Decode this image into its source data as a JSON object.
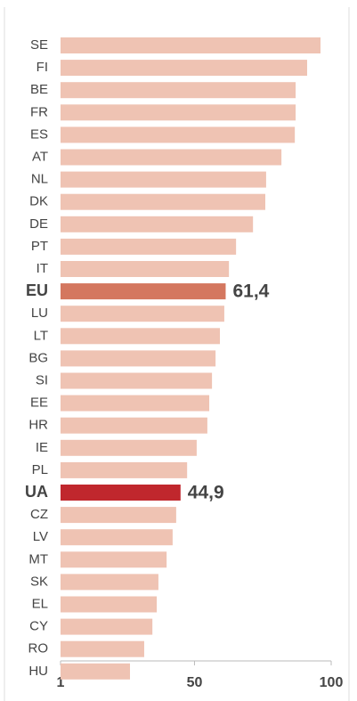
{
  "chart_data": {
    "type": "hbar",
    "categories": [
      "SE",
      "FI",
      "BE",
      "FR",
      "ES",
      "AT",
      "NL",
      "DK",
      "DE",
      "PT",
      "IT",
      "EU",
      "LU",
      "LT",
      "BG",
      "SI",
      "EE",
      "HR",
      "IE",
      "PL",
      "UA",
      "CZ",
      "LV",
      "MT",
      "SK",
      "EL",
      "CY",
      "RO",
      "HU"
    ],
    "values": [
      96.1,
      91.2,
      87,
      87,
      86.7,
      81.8,
      76.2,
      75.9,
      71.4,
      65.2,
      62.6,
      61.4,
      60.9,
      59.3,
      57.7,
      56.4,
      55.4,
      54.7,
      50.8,
      47.3,
      44.9,
      43.3,
      42,
      39.8,
      36.8,
      36.2,
      34.6,
      31.6,
      26.4
    ],
    "value_labels": [
      null,
      null,
      null,
      null,
      null,
      null,
      null,
      null,
      null,
      null,
      null,
      "61,4",
      null,
      null,
      null,
      null,
      null,
      null,
      null,
      null,
      "44,9",
      null,
      null,
      null,
      null,
      null,
      null,
      null,
      null
    ],
    "colors": [
      "#efc3b3",
      "#efc3b3",
      "#efc3b3",
      "#efc3b3",
      "#efc3b3",
      "#efc3b3",
      "#efc3b3",
      "#efc3b3",
      "#efc3b3",
      "#efc3b3",
      "#efc3b3",
      "#d4775f",
      "#efc3b3",
      "#efc3b3",
      "#efc3b3",
      "#efc3b3",
      "#efc3b3",
      "#efc3b3",
      "#efc3b3",
      "#efc3b3",
      "#c0272d",
      "#efc3b3",
      "#efc3b3",
      "#efc3b3",
      "#efc3b3",
      "#efc3b3",
      "#efc3b3",
      "#efc3b3",
      "#efc3b3"
    ],
    "xlim": [
      1,
      100
    ],
    "xticks": [
      1,
      50,
      100
    ]
  }
}
